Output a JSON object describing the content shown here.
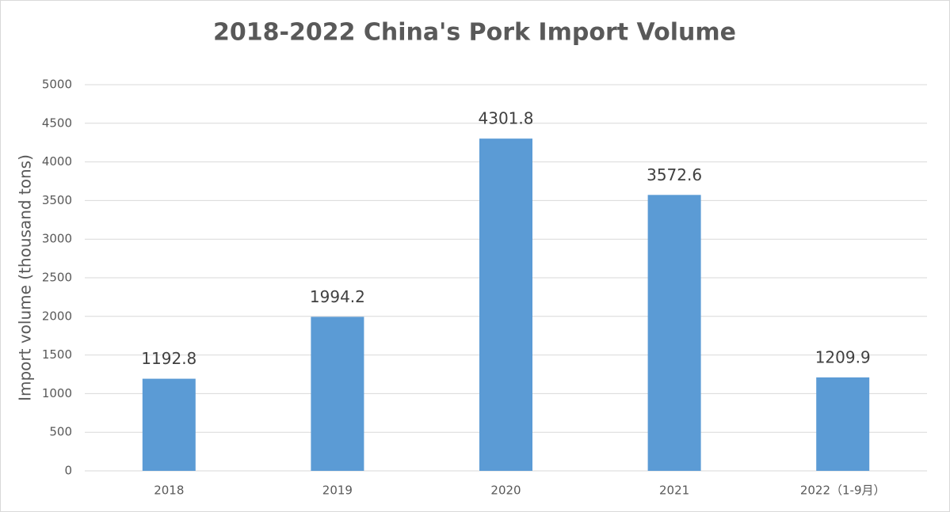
{
  "chart_data": {
    "type": "bar",
    "title": "2018-2022 China's Pork Import Volume",
    "y_label": "Import volume (thousand tons)",
    "categories": [
      "2018",
      "2019",
      "2020",
      "2021",
      "2022（1-9月）"
    ],
    "values": [
      1192.8,
      1994.2,
      4301.8,
      3572.6,
      1209.9
    ],
    "color": "#5b9bd5",
    "ylim": [
      0,
      5000
    ],
    "yticks": [
      0,
      500,
      1000,
      1500,
      2000,
      2500,
      3000,
      3500,
      4000,
      4500,
      5000
    ],
    "grid": true
  }
}
